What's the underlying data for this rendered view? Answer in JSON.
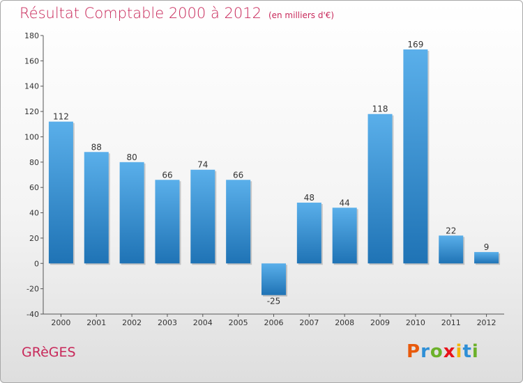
{
  "title": "Résultat Comptable 2000 à 2012",
  "subtitle": "(en milliers d'€)",
  "town": "GRèGES",
  "logo": {
    "letters": [
      "P",
      "r",
      "o",
      "x",
      "i",
      "t",
      "i"
    ],
    "colors": [
      "#e85a0c",
      "#2e8fd6",
      "#6cb12a",
      "#e8131a",
      "#f2b705",
      "#2e8fd6",
      "#6cb12a"
    ]
  },
  "colors": {
    "title": "#c8285a",
    "bar_light": "#5aafea",
    "bar_dark": "#1f73b5"
  },
  "chart_data": {
    "type": "bar",
    "title": "Résultat Comptable 2000 à 2012",
    "ylabel": "en milliers d'€",
    "xlabel": "",
    "categories": [
      "2000",
      "2001",
      "2002",
      "2003",
      "2004",
      "2005",
      "2006",
      "2007",
      "2008",
      "2009",
      "2010",
      "2011",
      "2012"
    ],
    "values": [
      112,
      88,
      80,
      66,
      74,
      66,
      -25,
      48,
      44,
      118,
      169,
      22,
      9
    ],
    "ylim": [
      -40,
      180
    ],
    "yticks": [
      -40,
      -20,
      0,
      20,
      40,
      60,
      80,
      100,
      120,
      140,
      160,
      180
    ],
    "grid": false
  }
}
